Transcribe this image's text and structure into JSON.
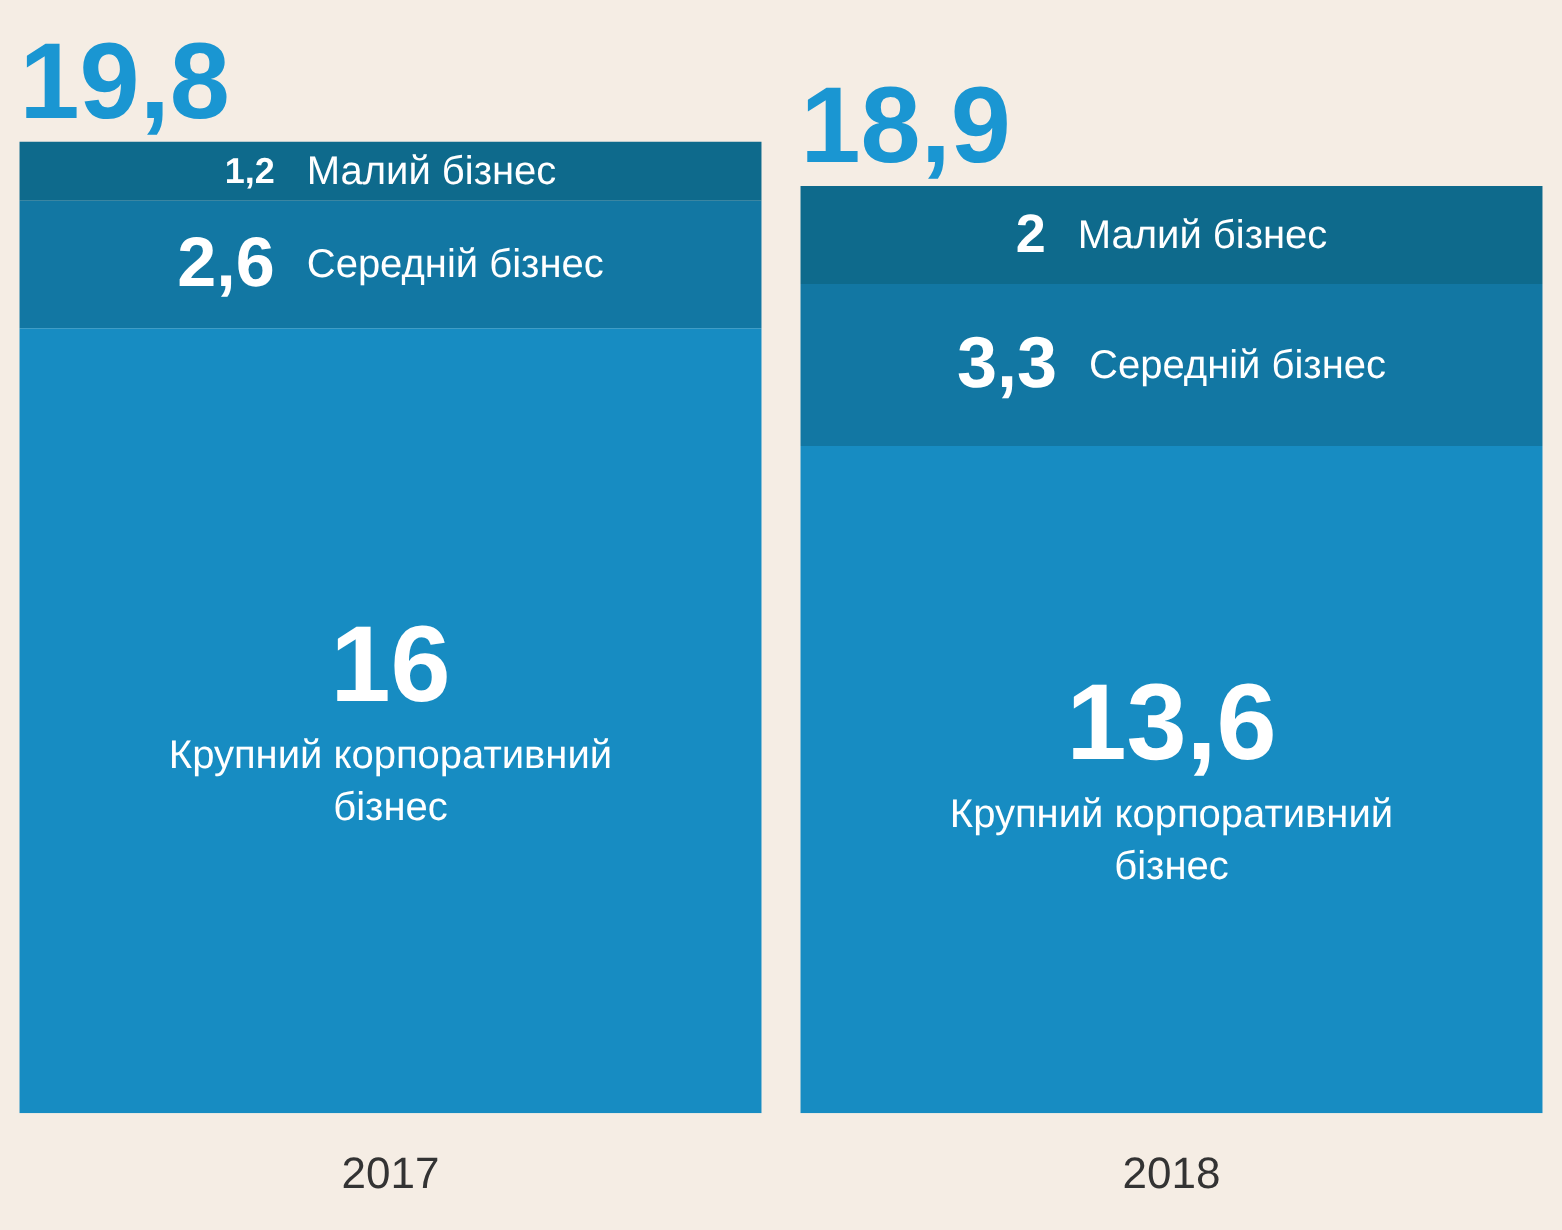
{
  "chart_data": {
    "type": "bar",
    "stacked": true,
    "categories": [
      "2017",
      "2018"
    ],
    "series": [
      {
        "name": "Крупний корпоративний бізнес",
        "color": "#178cc2",
        "values": [
          16,
          13.6
        ],
        "value_labels": [
          "16",
          "13,6"
        ]
      },
      {
        "name": "Середній бізнес",
        "color": "#1277a3",
        "values": [
          2.6,
          3.3
        ],
        "value_labels": [
          "2,6",
          "3,3"
        ]
      },
      {
        "name": "Малий бізнес",
        "color": "#0e6a8c",
        "values": [
          1.2,
          2
        ],
        "value_labels": [
          "1,2",
          "2"
        ]
      }
    ],
    "totals": [
      "19,8",
      "18,9"
    ]
  }
}
